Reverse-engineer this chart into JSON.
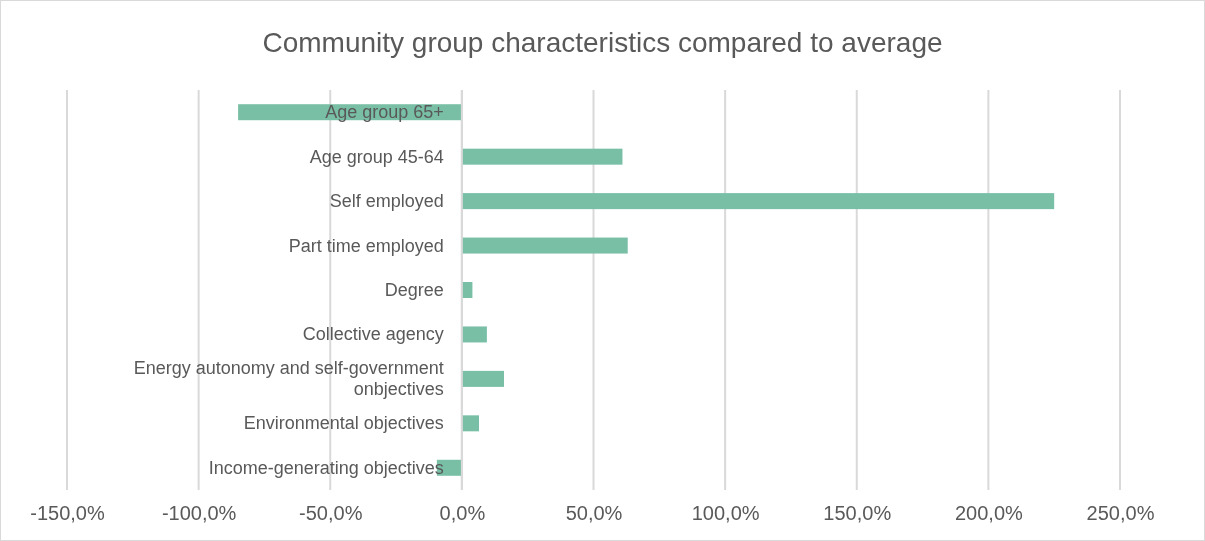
{
  "chart_data": {
    "type": "bar",
    "orientation": "horizontal",
    "title": "Community group characteristics compared to average",
    "categories": [
      "Age group 65+",
      "Age group 45-64",
      "Self employed",
      "Part time employed",
      "Degree",
      "Collective agency",
      "Energy autonomy and self-government onbjectives",
      "Environmental objectives",
      "Income-generating objectives"
    ],
    "values": [
      -85,
      61,
      225,
      63,
      4,
      9.5,
      16,
      6.5,
      -9.5
    ],
    "color": "#78bfa6",
    "xlim": [
      -150,
      250
    ],
    "xticks": [
      {
        "value": -150,
        "label": "-150,0%"
      },
      {
        "value": -100,
        "label": "-100,0%"
      },
      {
        "value": -50,
        "label": "-50,0%"
      },
      {
        "value": 0,
        "label": "0,0%"
      },
      {
        "value": 50,
        "label": "50,0%"
      },
      {
        "value": 100,
        "label": "100,0%"
      },
      {
        "value": 150,
        "label": "150,0%"
      },
      {
        "value": 200,
        "label": "200,0%"
      },
      {
        "value": 250,
        "label": "250,0%"
      }
    ],
    "grid": "x"
  }
}
